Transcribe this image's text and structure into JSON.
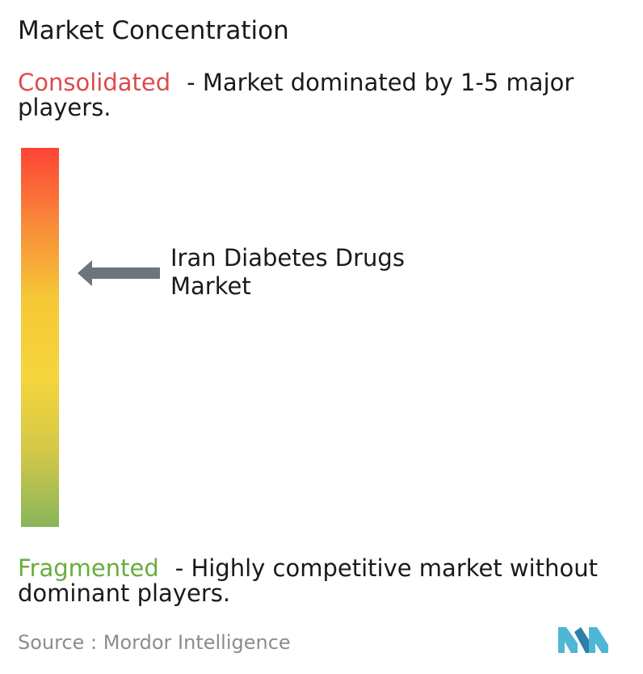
{
  "title": "Market Concentration",
  "consolidated": {
    "label": "Consolidated",
    "description": "- Market dominated by 1-5 major players.",
    "color": "#dd4b4b"
  },
  "fragmented": {
    "label": "Fragmented",
    "description": "- Highly competitive market without dominant players.",
    "color": "#6aac3c"
  },
  "indicator": {
    "market_name": "Iran Diabetes Drugs Market",
    "position_fraction_from_top": 0.33,
    "arrow_color": "#6d747c"
  },
  "gradient_colors": [
    "#fd4334",
    "#f98a3a",
    "#f6c836",
    "#f5d53b",
    "#d3c848",
    "#8ab55c"
  ],
  "source": {
    "text": "Source :  Mordor Intelligence"
  },
  "logo": {
    "icon": "mordor-intelligence-logo-icon",
    "colors": [
      "#4fb7d6",
      "#2f7fa9"
    ]
  }
}
